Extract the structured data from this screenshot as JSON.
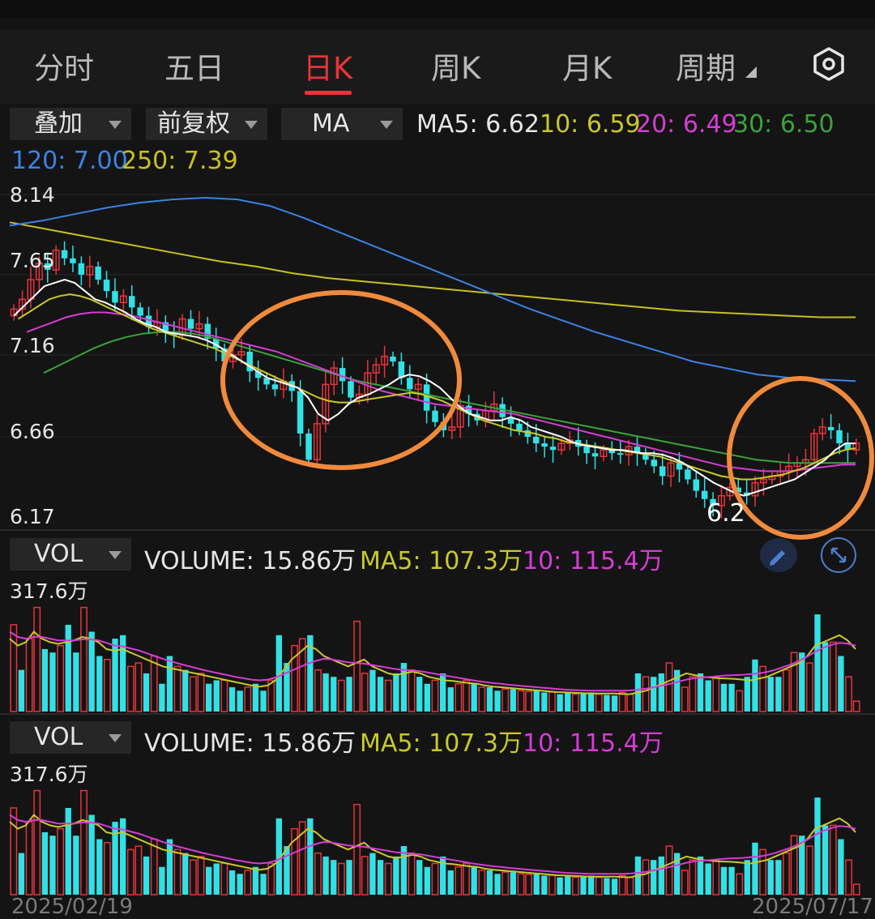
{
  "tabs": [
    {
      "label": "分时",
      "active": false
    },
    {
      "label": "五日",
      "active": false
    },
    {
      "label": "日K",
      "active": true
    },
    {
      "label": "周K",
      "active": false
    },
    {
      "label": "月K",
      "active": false
    },
    {
      "label": "周期",
      "active": false
    }
  ],
  "icons": {
    "settings": "hexagon-settings-icon",
    "pen": "pen-icon",
    "expand": "expand-icon"
  },
  "controls": {
    "overlay": "叠加",
    "adjust": "前复权",
    "indicator": "MA"
  },
  "ma_legend": {
    "ma5": "MA5: 6.62",
    "ma10": "10: 6.59",
    "ma20": "20: 6.49",
    "ma30": "30: 6.50",
    "ma120": "120: 7.00",
    "ma250": "250: 7.39"
  },
  "colors": {
    "up": "#e8343a",
    "down": "#31e1e6",
    "ma5": "#ffffff",
    "ma10": "#c9c92a",
    "ma20": "#d63cd6",
    "ma30": "#3aa33a",
    "ma120": "#3b82e6",
    "ma250": "#c9c020",
    "highlight": "#f08a3c"
  },
  "volume_panels": [
    {
      "selector": "VOL",
      "volume": "VOLUME: 15.86万",
      "ma5": "MA5: 107.3万",
      "ma10": "10: 115.4万",
      "max_label": "317.6万"
    },
    {
      "selector": "VOL",
      "volume": "VOLUME: 15.86万",
      "ma5": "MA5: 107.3万",
      "ma10": "10: 115.4万",
      "max_label": "317.6万"
    }
  ],
  "date_start": "2025/02/19",
  "date_end": "2025/07/17",
  "chart_data": {
    "type": "candlestick",
    "y_ticks": [
      "8.14",
      "7.65",
      "7.16",
      "6.66",
      "6.17"
    ],
    "ylim": [
      6.17,
      8.14
    ],
    "low_marker": "6.2",
    "x_range": [
      "2025/02/19",
      "2025/07/17"
    ],
    "grid": true,
    "highlight_regions": [
      "ellipse-mid",
      "ellipse-right"
    ],
    "closes": [
      7.44,
      7.5,
      7.62,
      7.72,
      7.68,
      7.8,
      7.75,
      7.72,
      7.65,
      7.7,
      7.62,
      7.55,
      7.48,
      7.52,
      7.45,
      7.4,
      7.33,
      7.36,
      7.3,
      7.28,
      7.38,
      7.32,
      7.35,
      7.26,
      7.2,
      7.12,
      7.16,
      7.18,
      7.06,
      7.02,
      6.98,
      6.95,
      7.0,
      6.94,
      6.68,
      6.52,
      6.74,
      6.98,
      7.08,
      7.0,
      6.9,
      6.92,
      7.05,
      7.1,
      7.15,
      7.12,
      7.02,
      6.95,
      6.98,
      6.82,
      6.75,
      6.7,
      6.72,
      6.85,
      6.8,
      6.76,
      6.82,
      6.86,
      6.78,
      6.74,
      6.7,
      6.66,
      6.62,
      6.6,
      6.58,
      6.62,
      6.64,
      6.6,
      6.56,
      6.54,
      6.58,
      6.56,
      6.55,
      6.6,
      6.56,
      6.52,
      6.48,
      6.42,
      6.5,
      6.46,
      6.4,
      6.33,
      6.28,
      6.24,
      6.3,
      6.35,
      6.32,
      6.3,
      6.38,
      6.4,
      6.42,
      6.45,
      6.48,
      6.5,
      6.52,
      6.68,
      6.72,
      6.7,
      6.62,
      6.58,
      6.62
    ],
    "ma5": [
      7.4,
      7.46,
      7.52,
      7.58,
      7.6,
      7.62,
      7.6,
      7.55,
      7.5,
      7.48,
      7.45,
      7.42,
      7.38,
      7.35,
      7.33,
      7.3,
      7.29,
      7.28,
      7.27,
      7.25,
      7.22,
      7.18,
      7.14,
      7.1,
      7.06,
      7.02,
      7.0,
      6.98,
      6.96,
      6.9,
      6.8,
      6.76,
      6.8,
      6.86,
      6.9,
      6.92,
      6.95,
      6.98,
      7.02,
      7.04,
      7.03,
      7.0,
      6.96,
      6.9,
      6.84,
      6.8,
      6.78,
      6.76,
      6.76,
      6.78,
      6.76,
      6.72,
      6.7,
      6.68,
      6.66,
      6.63,
      6.61,
      6.6,
      6.59,
      6.58,
      6.58,
      6.57,
      6.56,
      6.56,
      6.55,
      6.53,
      6.5,
      6.46,
      6.42,
      6.38,
      6.35,
      6.32,
      6.3,
      6.32,
      6.34,
      6.36,
      6.38,
      6.4,
      6.44,
      6.48,
      6.52,
      6.58,
      6.62,
      6.62
    ],
    "ma10": [
      7.38,
      7.42,
      7.46,
      7.5,
      7.52,
      7.53,
      7.52,
      7.5,
      7.47,
      7.44,
      7.41,
      7.38,
      7.35,
      7.32,
      7.3,
      7.28,
      7.26,
      7.24,
      7.22,
      7.2,
      7.17,
      7.14,
      7.11,
      7.08,
      7.05,
      7.02,
      6.99,
      6.96,
      6.93,
      6.9,
      6.88,
      6.87,
      6.87,
      6.88,
      6.89,
      6.9,
      6.91,
      6.92,
      6.93,
      6.92,
      6.9,
      6.88,
      6.85,
      6.82,
      6.79,
      6.76,
      6.74,
      6.72,
      6.7,
      6.69,
      6.68,
      6.66,
      6.65,
      6.63,
      6.62,
      6.61,
      6.6,
      6.59,
      6.58,
      6.57,
      6.56,
      6.55,
      6.54,
      6.52,
      6.5,
      6.48,
      6.46,
      6.44,
      6.42,
      6.41,
      6.4,
      6.4,
      6.41,
      6.42,
      6.43,
      6.45,
      6.47,
      6.5,
      6.53,
      6.56,
      6.58,
      6.59
    ],
    "ma20": [
      7.3,
      7.33,
      7.36,
      7.39,
      7.41,
      7.42,
      7.42,
      7.41,
      7.4,
      7.38,
      7.36,
      7.34,
      7.32,
      7.3,
      7.28,
      7.26,
      7.24,
      7.22,
      7.2,
      7.18,
      7.15,
      7.12,
      7.09,
      7.06,
      7.03,
      7.0,
      6.97,
      6.94,
      6.92,
      6.9,
      6.88,
      6.86,
      6.85,
      6.84,
      6.83,
      6.82,
      6.81,
      6.8,
      6.78,
      6.76,
      6.74,
      6.72,
      6.7,
      6.68,
      6.66,
      6.64,
      6.62,
      6.6,
      6.58,
      6.56,
      6.54,
      6.52,
      6.5,
      6.48,
      6.47,
      6.46,
      6.45,
      6.45,
      6.45,
      6.46,
      6.47,
      6.48,
      6.49,
      6.49
    ],
    "ma30": [
      7.05,
      7.1,
      7.15,
      7.2,
      7.24,
      7.27,
      7.29,
      7.3,
      7.3,
      7.29,
      7.27,
      7.24,
      7.21,
      7.18,
      7.15,
      7.12,
      7.09,
      7.06,
      7.03,
      7.0,
      6.98,
      6.96,
      6.94,
      6.92,
      6.9,
      6.88,
      6.86,
      6.84,
      6.82,
      6.8,
      6.78,
      6.76,
      6.74,
      6.72,
      6.7,
      6.68,
      6.66,
      6.64,
      6.62,
      6.6,
      6.58,
      6.56,
      6.54,
      6.52,
      6.51,
      6.5,
      6.5,
      6.5,
      6.5,
      6.5
    ],
    "ma120": [
      7.95,
      7.98,
      8.02,
      8.06,
      8.09,
      8.11,
      8.12,
      8.11,
      8.07,
      8.0,
      7.92,
      7.84,
      7.76,
      7.68,
      7.6,
      7.52,
      7.44,
      7.37,
      7.3,
      7.24,
      7.18,
      7.12,
      7.08,
      7.04,
      7.02,
      7.01,
      7.0
    ],
    "ma250": [
      7.97,
      7.93,
      7.89,
      7.85,
      7.81,
      7.77,
      7.73,
      7.7,
      7.66,
      7.63,
      7.61,
      7.59,
      7.57,
      7.55,
      7.53,
      7.51,
      7.49,
      7.47,
      7.45,
      7.43,
      7.42,
      7.41,
      7.4,
      7.39,
      7.39
    ],
    "volume_max": 317.6,
    "volumes": [
      250,
      120,
      210,
      300,
      180,
      170,
      190,
      250,
      170,
      300,
      230,
      160,
      150,
      210,
      220,
      130,
      140,
      110,
      160,
      80,
      160,
      130,
      120,
      100,
      110,
      80,
      90,
      90,
      70,
      60,
      70,
      80,
      60,
      90,
      220,
      140,
      190,
      210,
      220,
      120,
      110,
      100,
      90,
      100,
      260,
      110,
      120,
      100,
      90,
      110,
      140,
      120,
      100,
      80,
      90,
      110,
      70,
      80,
      90,
      80,
      70,
      70,
      60,
      65,
      65,
      60,
      58,
      60,
      55,
      56,
      50,
      55,
      50,
      52,
      55,
      50,
      48,
      46,
      55,
      50,
      110,
      100,
      100,
      110,
      140,
      120,
      70,
      100,
      110,
      90,
      100,
      80,
      80,
      60,
      100,
      150,
      130,
      100,
      100,
      120,
      170,
      170,
      140,
      280,
      200,
      200,
      160,
      100,
      30
    ],
    "volume_ma5": [
      210,
      190,
      200,
      230,
      210,
      200,
      195,
      200,
      205,
      215,
      210,
      200,
      180,
      175,
      180,
      170,
      160,
      150,
      140,
      130,
      125,
      120,
      115,
      110,
      105,
      100,
      95,
      90,
      85,
      80,
      75,
      72,
      75,
      90,
      120,
      150,
      170,
      190,
      180,
      160,
      150,
      140,
      130,
      140,
      150,
      130,
      120,
      110,
      105,
      110,
      115,
      110,
      100,
      95,
      90,
      88,
      85,
      82,
      80,
      75,
      72,
      70,
      68,
      66,
      64,
      62,
      60,
      58,
      56,
      55,
      54,
      53,
      52,
      52,
      52,
      52,
      51,
      50,
      55,
      60,
      70,
      80,
      90,
      100,
      110,
      105,
      100,
      98,
      96,
      95,
      94,
      92,
      90,
      95,
      100,
      110,
      120,
      130,
      140,
      160,
      190,
      200,
      210,
      220,
      205,
      180
    ],
    "volume_ma10": [
      230,
      215,
      210,
      215,
      215,
      210,
      205,
      205,
      205,
      208,
      208,
      205,
      198,
      190,
      188,
      182,
      176,
      168,
      160,
      152,
      145,
      138,
      132,
      126,
      120,
      115,
      110,
      105,
      100,
      96,
      92,
      90,
      92,
      98,
      108,
      118,
      128,
      138,
      146,
      152,
      150,
      146,
      142,
      140,
      138,
      134,
      130,
      126,
      122,
      120,
      118,
      116,
      112,
      108,
      104,
      100,
      96,
      92,
      88,
      85,
      82,
      80,
      77,
      75,
      73,
      71,
      69,
      67,
      65,
      63,
      62,
      61,
      60,
      60,
      60,
      60,
      60,
      61,
      63,
      66,
      70,
      75,
      80,
      86,
      92,
      96,
      98,
      100,
      102,
      104,
      105,
      106,
      108,
      110,
      114,
      120,
      128,
      136,
      146,
      158,
      172,
      184,
      192,
      198,
      196,
      190
    ]
  }
}
